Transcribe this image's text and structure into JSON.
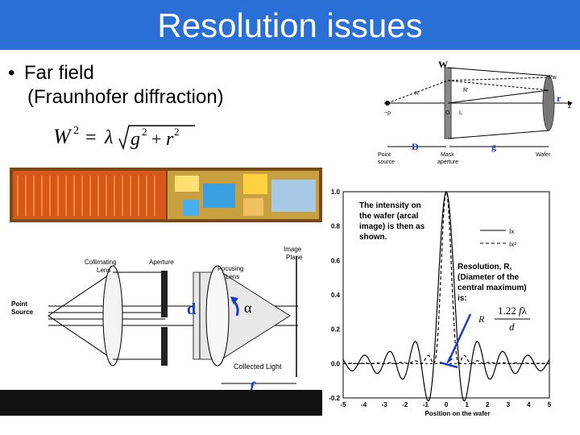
{
  "slide": {
    "title": "Resolution issues",
    "bullet": [
      "Far field",
      "(Fraunhofer diffraction)"
    ],
    "formula_text": "W² = λ√(g² + r²)",
    "colors": {
      "title_bar": "#2a6fd6",
      "arrow_blue": "#1a3cc7"
    }
  },
  "top_diagram": {
    "labels": {
      "W": "W",
      "Pw": "Pw",
      "r": "r",
      "z": "z",
      "R": "R",
      "R_prime": "R'",
      "L": "L",
      "O": "O",
      "minus_rho": "−ρ",
      "D": "D",
      "g": "g",
      "point_source": "Point\nsource",
      "mask_aperture": "Mask\naperture",
      "wafer": "Wafer"
    }
  },
  "chip_image": {
    "icon": "chip-die-photo"
  },
  "optics_diagram": {
    "labels": {
      "collimating_lens": "Collimating\nLens",
      "aperture": "Aperture",
      "focusing_lens": "Focusing\nLens",
      "image_plane": "Image\nPlane",
      "point_source": "Point\nSource",
      "d": "d",
      "alpha": "α",
      "collected_light": "Collected Light",
      "f": "f"
    }
  },
  "chart_data": {
    "type": "line",
    "x": [
      -5,
      -4,
      -3,
      -2,
      -1,
      0,
      1,
      2,
      3,
      4,
      5
    ],
    "xlabel": "Position on the wafer",
    "ylabel": "",
    "xlim": [
      -5,
      5
    ],
    "ylim": [
      -0.2,
      1.0
    ],
    "yticks": [
      -0.2,
      0.0,
      0.2,
      0.4,
      0.6,
      0.8,
      1.0
    ],
    "ytick_labels": [
      "-0.2",
      "0.0",
      "0.2",
      "0.4",
      "0.6",
      "0.8",
      "1.0"
    ],
    "xtick_labels": [
      "-5",
      "-4",
      "-3",
      "-2",
      "-1",
      "0",
      "1",
      "2",
      "3",
      "4",
      "5"
    ],
    "series": [
      {
        "name": "Ix",
        "style": "solid",
        "peak": 1.0,
        "first_zero": 0.61
      },
      {
        "name": "Ix²",
        "style": "dashed",
        "peak": 1.0,
        "first_zero": 0.61
      }
    ],
    "annotations": [
      "The intensity on the wafer (arcal image) is then as shown.",
      "Resolution, R, (Diameter of the central maximum) is:",
      "R = 1.22 fλ / d"
    ]
  }
}
